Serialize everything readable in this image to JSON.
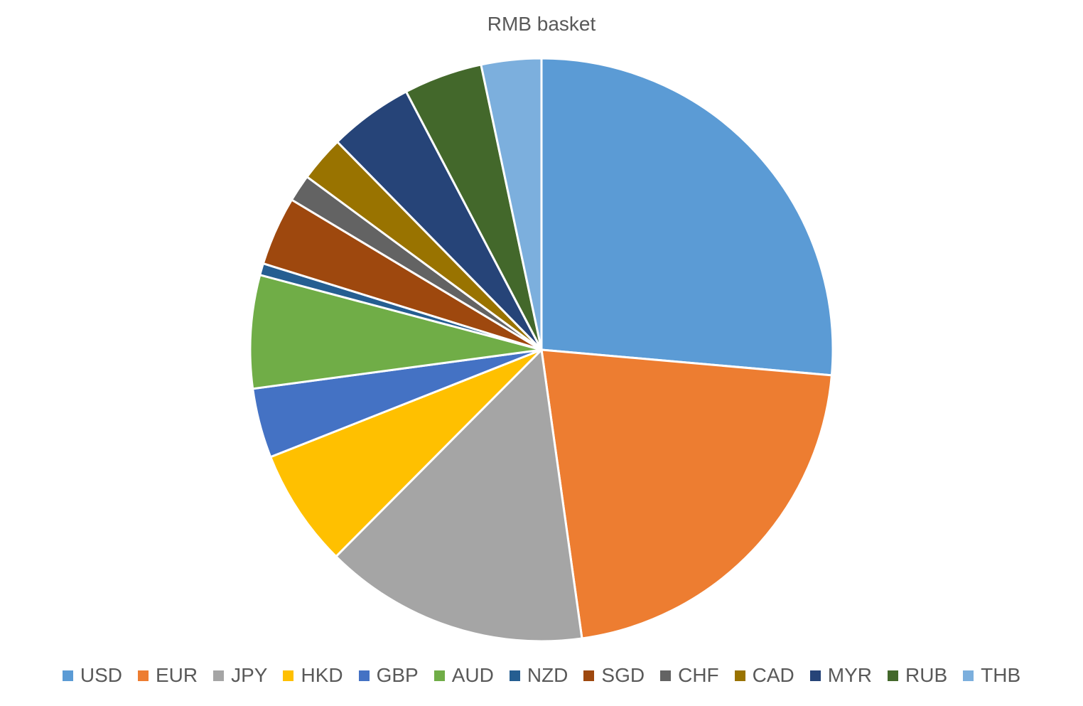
{
  "chart_data": {
    "type": "pie",
    "title": "RMB basket",
    "categories": [
      "USD",
      "EUR",
      "JPY",
      "HKD",
      "GBP",
      "AUD",
      "NZD",
      "SGD",
      "CHF",
      "CAD",
      "MYR",
      "RUB",
      "THB"
    ],
    "values": [
      26.4,
      21.39,
      14.68,
      6.55,
      3.86,
      6.27,
      0.65,
      3.82,
      1.51,
      2.53,
      4.67,
      4.36,
      3.33
    ],
    "colors": [
      "#5B9BD5",
      "#ED7D31",
      "#A5A5A5",
      "#FFC000",
      "#4472C4",
      "#70AD47",
      "#255E91",
      "#9E480E",
      "#636363",
      "#997300",
      "#264478",
      "#43682B",
      "#7CAFDD"
    ],
    "legend_position": "bottom"
  }
}
